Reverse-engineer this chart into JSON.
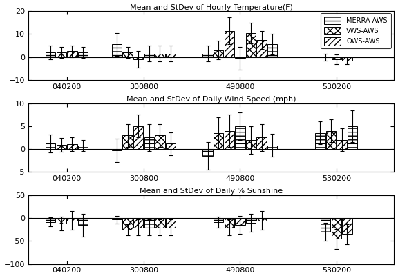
{
  "stations": [
    "040200",
    "300800",
    "490800",
    "530200"
  ],
  "title1": "Mean and StDev of Hourly Temperature(F)",
  "title2": "Mean and StDev of Daily Wind Speed (mph)",
  "title3": "Mean and StDev of Daily % Sunshine",
  "legend_labels": [
    "MERRA-AWS",
    "VWS-AWS",
    "OWS-AWS"
  ],
  "temp": {
    "040200": {
      "means": [
        2.0,
        2.0,
        2.5,
        2.0
      ],
      "stds": [
        3.0,
        2.5,
        2.5,
        2.5
      ]
    },
    "300800": {
      "means": [
        5.5,
        2.0,
        -1.0,
        1.5,
        1.5,
        1.5
      ],
      "stds": [
        5.0,
        2.5,
        3.5,
        3.5,
        3.5,
        3.5
      ]
    },
    "490800": {
      "means": [
        1.5,
        3.0,
        11.5,
        -0.5,
        10.5,
        7.5,
        5.5
      ],
      "stds": [
        3.5,
        4.0,
        6.0,
        5.0,
        4.5,
        4.0,
        4.5
      ]
    },
    "530200": {
      "means": [
        0.0,
        -1.0,
        -1.5
      ],
      "stds": [
        1.5,
        2.0,
        1.5
      ]
    }
  },
  "wind": {
    "040200": {
      "means": [
        1.2,
        0.9,
        1.1,
        0.7
      ],
      "stds": [
        2.0,
        1.5,
        1.5,
        1.2
      ]
    },
    "300800": {
      "means": [
        -0.3,
        3.0,
        5.0,
        2.5,
        3.0,
        1.2
      ],
      "stds": [
        2.5,
        2.5,
        2.5,
        3.0,
        2.5,
        2.5
      ]
    },
    "490800": {
      "means": [
        -1.5,
        3.5,
        4.0,
        5.0,
        2.0,
        2.5,
        0.8
      ],
      "stds": [
        3.0,
        3.5,
        3.5,
        3.0,
        3.0,
        3.0,
        2.5
      ]
    },
    "530200": {
      "means": [
        3.5,
        4.0,
        2.0,
        5.0
      ],
      "stds": [
        2.5,
        2.5,
        2.5,
        3.5
      ]
    }
  },
  "sun": {
    "040200": {
      "means": [
        -8.0,
        -12.0,
        -5.0,
        -15.0
      ],
      "stds": [
        10.0,
        15.0,
        20.0,
        25.0
      ]
    },
    "300800": {
      "means": [
        -3.0,
        -25.0,
        -20.0,
        -20.0,
        -20.0,
        -20.0
      ],
      "stds": [
        8.0,
        12.0,
        18.0,
        18.0,
        18.0,
        18.0
      ]
    },
    "490800": {
      "means": [
        -8.0,
        -20.0,
        -15.0,
        -10.0,
        -5.0
      ],
      "stds": [
        12.0,
        18.0,
        20.0,
        20.0,
        20.0
      ]
    },
    "530200": {
      "means": [
        -30.0,
        -45.0,
        -35.0
      ],
      "stds": [
        20.0,
        22.0,
        22.0
      ]
    }
  },
  "hatch_cycle": [
    "---",
    "xxx",
    "////"
  ],
  "ylim1": [
    -10,
    20
  ],
  "ylim2": [
    -5,
    10
  ],
  "ylim3": [
    -100,
    50
  ],
  "yticks1": [
    -10,
    0,
    10,
    20
  ],
  "yticks2": [
    -5,
    0,
    5,
    10
  ],
  "yticks3": [
    -100,
    -50,
    0,
    50
  ],
  "station_centers": [
    1.0,
    3.0,
    5.5,
    8.0
  ],
  "xlim": [
    0,
    9.5
  ],
  "bar_width": 0.28
}
